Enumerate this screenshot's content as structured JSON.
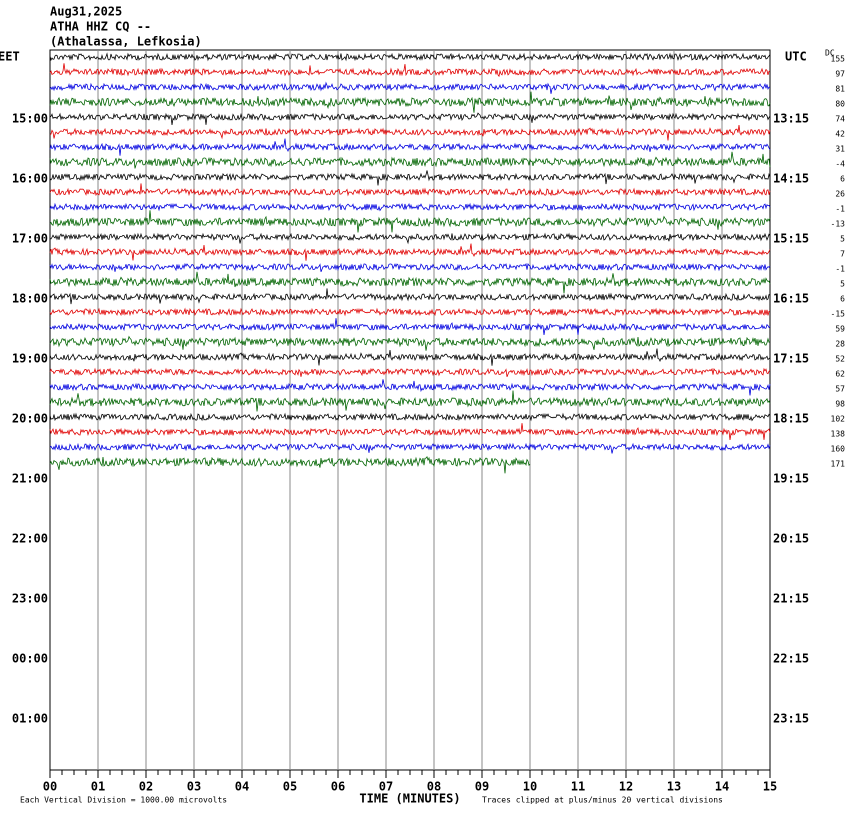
{
  "header": {
    "date": "Aug31,2025",
    "station": "ATHA HHZ CQ --",
    "location": "(Athalassa, Lefkosia)"
  },
  "left_axis": {
    "title": "EET",
    "labels": [
      "15:00",
      "16:00",
      "17:00",
      "18:00",
      "19:00",
      "20:00",
      "21:00",
      "22:00",
      "23:00",
      "00:00",
      "01:00"
    ]
  },
  "right_axis": {
    "title": "UTC",
    "labels": [
      "13:15",
      "14:15",
      "15:15",
      "16:15",
      "17:15",
      "18:15",
      "19:15",
      "20:15",
      "21:15",
      "22:15",
      "23:15"
    ]
  },
  "dc": {
    "title": "DC",
    "values": [
      "155",
      "97",
      "81",
      "80",
      "74",
      "42",
      "31",
      "-4",
      "6",
      "26",
      "-1",
      "-13",
      "5",
      "7",
      "-1",
      "5",
      "6",
      "-15",
      "59",
      "28",
      "52",
      "62",
      "57",
      "98",
      "102",
      "138",
      "160",
      "171"
    ]
  },
  "x_axis": {
    "title": "TIME (MINUTES)",
    "labels": [
      "00",
      "01",
      "02",
      "03",
      "04",
      "05",
      "06",
      "07",
      "08",
      "09",
      "10",
      "11",
      "12",
      "13",
      "14",
      "15"
    ]
  },
  "footer": {
    "scale": "Each Vertical Division = 1000.00 microvolts",
    "clip": "Traces clipped at plus/minus 20 vertical divisions"
  }
}
